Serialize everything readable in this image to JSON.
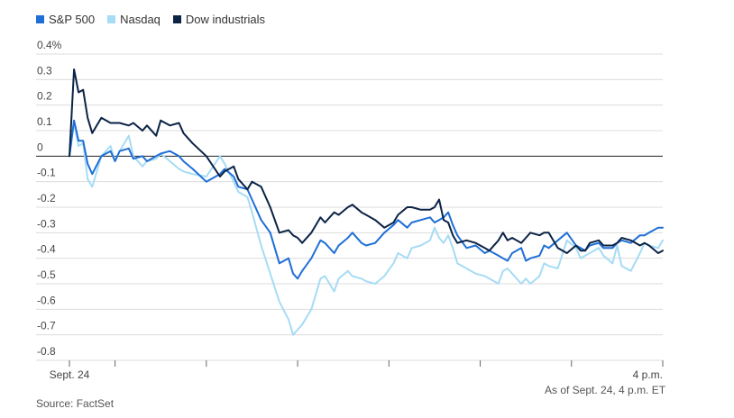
{
  "chart_data": {
    "type": "line",
    "title": "",
    "xlabel": "",
    "ylabel": "",
    "ylim": [
      -0.8,
      0.4
    ],
    "yticks": [
      0.4,
      0.3,
      0.2,
      0.1,
      0,
      -0.1,
      -0.2,
      -0.3,
      -0.4,
      -0.5,
      -0.6,
      -0.7,
      -0.8
    ],
    "ytick_labels": [
      "0.4%",
      "0.3",
      "0.2",
      "0.1",
      "0",
      "-0.1",
      "-0.2",
      "-0.3",
      "-0.4",
      "-0.5",
      "-0.6",
      "-0.7",
      "-0.8"
    ],
    "x_range": [
      9.5,
      16.0
    ],
    "x_unit": "hour of day (ET)",
    "xtick_positions": [
      9.5,
      10,
      11,
      12,
      13,
      14,
      15,
      16
    ],
    "xtick_labels": [
      "Sept. 24",
      "",
      "",
      "",
      "",
      "",
      "",
      "4 p.m."
    ],
    "legend": {
      "placement": "top-left"
    },
    "grid": true,
    "series": [
      {
        "name": "S&P 500",
        "color": "#1f6fd6",
        "x": [
          9.5,
          9.55,
          9.6,
          9.65,
          9.7,
          9.75,
          9.85,
          9.95,
          10.0,
          10.05,
          10.15,
          10.2,
          10.3,
          10.35,
          10.45,
          10.5,
          10.6,
          10.7,
          10.75,
          10.85,
          11.0,
          11.15,
          11.2,
          11.3,
          11.35,
          11.45,
          11.5,
          11.6,
          11.7,
          11.8,
          11.9,
          11.95,
          12.0,
          12.05,
          12.15,
          12.25,
          12.3,
          12.4,
          12.45,
          12.55,
          12.6,
          12.7,
          12.75,
          12.85,
          12.95,
          13.05,
          13.1,
          13.2,
          13.25,
          13.35,
          13.45,
          13.5,
          13.55,
          13.6,
          13.65,
          13.7,
          13.75,
          13.85,
          13.95,
          14.05,
          14.1,
          14.2,
          14.25,
          14.3,
          14.35,
          14.45,
          14.5,
          14.55,
          14.65,
          14.7,
          14.75,
          14.85,
          14.95,
          15.05,
          15.1,
          15.15,
          15.2,
          15.3,
          15.35,
          15.45,
          15.5,
          15.55,
          15.65,
          15.75,
          15.8,
          15.85,
          15.95,
          16.0
        ],
        "values": [
          0.0,
          0.14,
          0.06,
          0.06,
          -0.03,
          -0.07,
          0.0,
          0.02,
          -0.02,
          0.02,
          0.03,
          -0.01,
          0.0,
          -0.02,
          0.0,
          0.01,
          0.02,
          0.0,
          -0.02,
          -0.05,
          -0.1,
          -0.07,
          -0.05,
          -0.08,
          -0.12,
          -0.13,
          -0.17,
          -0.25,
          -0.3,
          -0.42,
          -0.4,
          -0.46,
          -0.48,
          -0.45,
          -0.4,
          -0.33,
          -0.34,
          -0.38,
          -0.35,
          -0.32,
          -0.3,
          -0.34,
          -0.35,
          -0.34,
          -0.3,
          -0.27,
          -0.25,
          -0.28,
          -0.26,
          -0.25,
          -0.24,
          -0.26,
          -0.25,
          -0.24,
          -0.22,
          -0.27,
          -0.31,
          -0.36,
          -0.35,
          -0.38,
          -0.37,
          -0.39,
          -0.4,
          -0.41,
          -0.38,
          -0.36,
          -0.41,
          -0.4,
          -0.39,
          -0.35,
          -0.36,
          -0.33,
          -0.3,
          -0.35,
          -0.36,
          -0.37,
          -0.35,
          -0.34,
          -0.36,
          -0.36,
          -0.34,
          -0.33,
          -0.34,
          -0.31,
          -0.31,
          -0.3,
          -0.28,
          -0.28
        ]
      },
      {
        "name": "Nasdaq",
        "color": "#a6dcf5",
        "x": [
          9.5,
          9.55,
          9.6,
          9.65,
          9.7,
          9.75,
          9.85,
          9.95,
          10.0,
          10.05,
          10.15,
          10.2,
          10.3,
          10.35,
          10.45,
          10.5,
          10.6,
          10.7,
          10.75,
          10.85,
          11.0,
          11.15,
          11.2,
          11.3,
          11.35,
          11.45,
          11.5,
          11.6,
          11.7,
          11.8,
          11.9,
          11.95,
          12.0,
          12.05,
          12.15,
          12.25,
          12.3,
          12.4,
          12.45,
          12.55,
          12.6,
          12.7,
          12.75,
          12.85,
          12.95,
          13.05,
          13.1,
          13.2,
          13.25,
          13.35,
          13.45,
          13.5,
          13.55,
          13.6,
          13.65,
          13.7,
          13.75,
          13.85,
          13.95,
          14.05,
          14.1,
          14.2,
          14.25,
          14.3,
          14.35,
          14.45,
          14.5,
          14.55,
          14.65,
          14.7,
          14.75,
          14.85,
          14.95,
          15.05,
          15.1,
          15.15,
          15.2,
          15.3,
          15.35,
          15.45,
          15.5,
          15.55,
          15.65,
          15.75,
          15.8,
          15.85,
          15.95,
          16.0
        ],
        "values": [
          0.0,
          0.13,
          0.04,
          0.05,
          -0.09,
          -0.12,
          0.0,
          0.04,
          -0.02,
          0.02,
          0.08,
          0.0,
          -0.04,
          -0.02,
          -0.01,
          0.01,
          -0.02,
          -0.05,
          -0.06,
          -0.07,
          -0.08,
          0.0,
          -0.03,
          -0.1,
          -0.14,
          -0.16,
          -0.22,
          -0.35,
          -0.46,
          -0.57,
          -0.64,
          -0.7,
          -0.68,
          -0.66,
          -0.6,
          -0.48,
          -0.47,
          -0.53,
          -0.48,
          -0.45,
          -0.47,
          -0.48,
          -0.49,
          -0.5,
          -0.47,
          -0.42,
          -0.38,
          -0.4,
          -0.36,
          -0.35,
          -0.33,
          -0.28,
          -0.32,
          -0.34,
          -0.31,
          -0.36,
          -0.42,
          -0.44,
          -0.46,
          -0.47,
          -0.48,
          -0.5,
          -0.45,
          -0.44,
          -0.46,
          -0.5,
          -0.48,
          -0.5,
          -0.47,
          -0.42,
          -0.43,
          -0.44,
          -0.33,
          -0.36,
          -0.4,
          -0.39,
          -0.38,
          -0.36,
          -0.39,
          -0.42,
          -0.35,
          -0.43,
          -0.45,
          -0.38,
          -0.34,
          -0.35,
          -0.36,
          -0.33
        ]
      },
      {
        "name": "Dow industrials",
        "color": "#0b2345",
        "x": [
          9.5,
          9.55,
          9.6,
          9.65,
          9.7,
          9.75,
          9.85,
          9.95,
          10.0,
          10.05,
          10.15,
          10.2,
          10.3,
          10.35,
          10.45,
          10.5,
          10.6,
          10.7,
          10.75,
          10.85,
          11.0,
          11.15,
          11.2,
          11.3,
          11.35,
          11.45,
          11.5,
          11.6,
          11.7,
          11.8,
          11.9,
          11.95,
          12.0,
          12.05,
          12.15,
          12.25,
          12.3,
          12.4,
          12.45,
          12.55,
          12.6,
          12.7,
          12.75,
          12.85,
          12.95,
          13.05,
          13.1,
          13.2,
          13.25,
          13.35,
          13.45,
          13.5,
          13.55,
          13.6,
          13.65,
          13.7,
          13.75,
          13.85,
          13.95,
          14.05,
          14.1,
          14.2,
          14.25,
          14.3,
          14.35,
          14.45,
          14.5,
          14.55,
          14.65,
          14.7,
          14.75,
          14.85,
          14.95,
          15.05,
          15.1,
          15.15,
          15.2,
          15.3,
          15.35,
          15.45,
          15.5,
          15.55,
          15.65,
          15.75,
          15.8,
          15.85,
          15.95,
          16.0
        ],
        "values": [
          0.0,
          0.34,
          0.25,
          0.26,
          0.15,
          0.09,
          0.15,
          0.13,
          0.13,
          0.13,
          0.12,
          0.13,
          0.1,
          0.12,
          0.08,
          0.14,
          0.12,
          0.13,
          0.09,
          0.05,
          0.0,
          -0.08,
          -0.06,
          -0.04,
          -0.09,
          -0.13,
          -0.1,
          -0.12,
          -0.2,
          -0.3,
          -0.29,
          -0.31,
          -0.32,
          -0.34,
          -0.3,
          -0.24,
          -0.26,
          -0.22,
          -0.23,
          -0.2,
          -0.19,
          -0.22,
          -0.23,
          -0.25,
          -0.28,
          -0.26,
          -0.23,
          -0.2,
          -0.2,
          -0.21,
          -0.21,
          -0.2,
          -0.17,
          -0.25,
          -0.26,
          -0.31,
          -0.34,
          -0.33,
          -0.34,
          -0.36,
          -0.37,
          -0.33,
          -0.3,
          -0.33,
          -0.32,
          -0.34,
          -0.32,
          -0.3,
          -0.31,
          -0.3,
          -0.3,
          -0.36,
          -0.38,
          -0.35,
          -0.37,
          -0.37,
          -0.34,
          -0.33,
          -0.35,
          -0.35,
          -0.34,
          -0.32,
          -0.33,
          -0.35,
          -0.34,
          -0.35,
          -0.38,
          -0.37
        ]
      }
    ]
  },
  "notes": {
    "timestamp": "As of Sept. 24, 4 p.m. ET",
    "source": "Source: FactSet"
  }
}
